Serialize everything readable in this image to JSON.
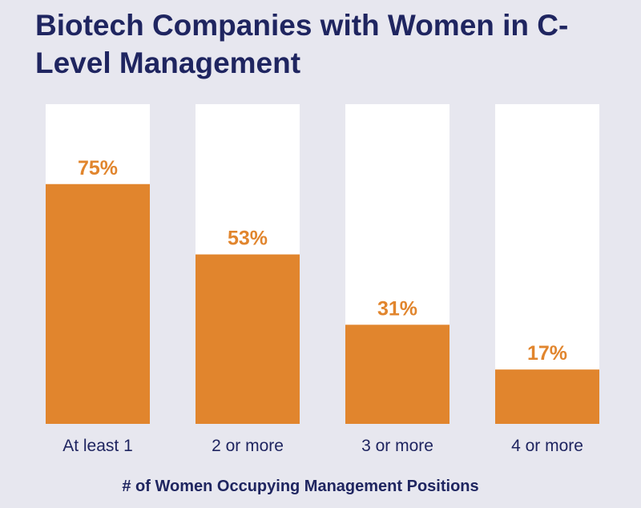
{
  "chart_data": {
    "type": "bar",
    "title": "Biotech Companies with Women in C-Level Management",
    "xlabel": "# of Women Occupying Management Positions",
    "ylabel": "",
    "categories": [
      "At least 1",
      "2 or more",
      "3 or more",
      "4 or more"
    ],
    "values": [
      75,
      53,
      31,
      17
    ],
    "value_labels": [
      "75%",
      "53%",
      "31%",
      "17%"
    ],
    "ylim": [
      0,
      100
    ],
    "grid": false,
    "colors": {
      "background": "#e7e7ef",
      "bar": "#e1852d",
      "track": "#ffffff",
      "title": "#1f2560",
      "value_label": "#e1852d"
    }
  }
}
